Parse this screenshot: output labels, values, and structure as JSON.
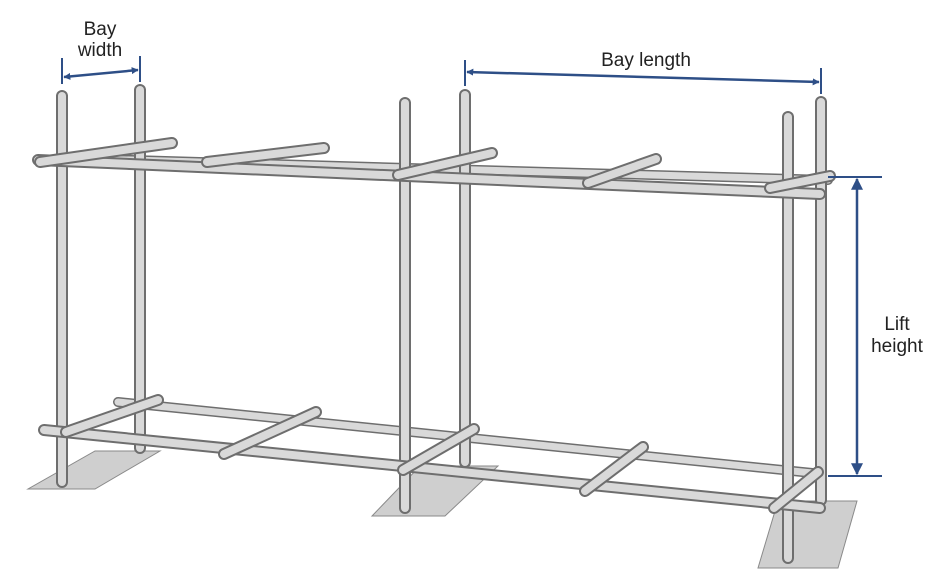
{
  "labels": {
    "bay_width_line1": "Bay",
    "bay_width_line2": "width",
    "bay_length": "Bay length",
    "lift_height_line1": "Lift",
    "lift_height_line2": "height"
  },
  "colors": {
    "dimension": "#2e4f87",
    "tube_fill": "#d9d9d9",
    "tube_edge": "#6e6e6e",
    "base_plate": "#cfcfcf",
    "text": "#222222"
  }
}
